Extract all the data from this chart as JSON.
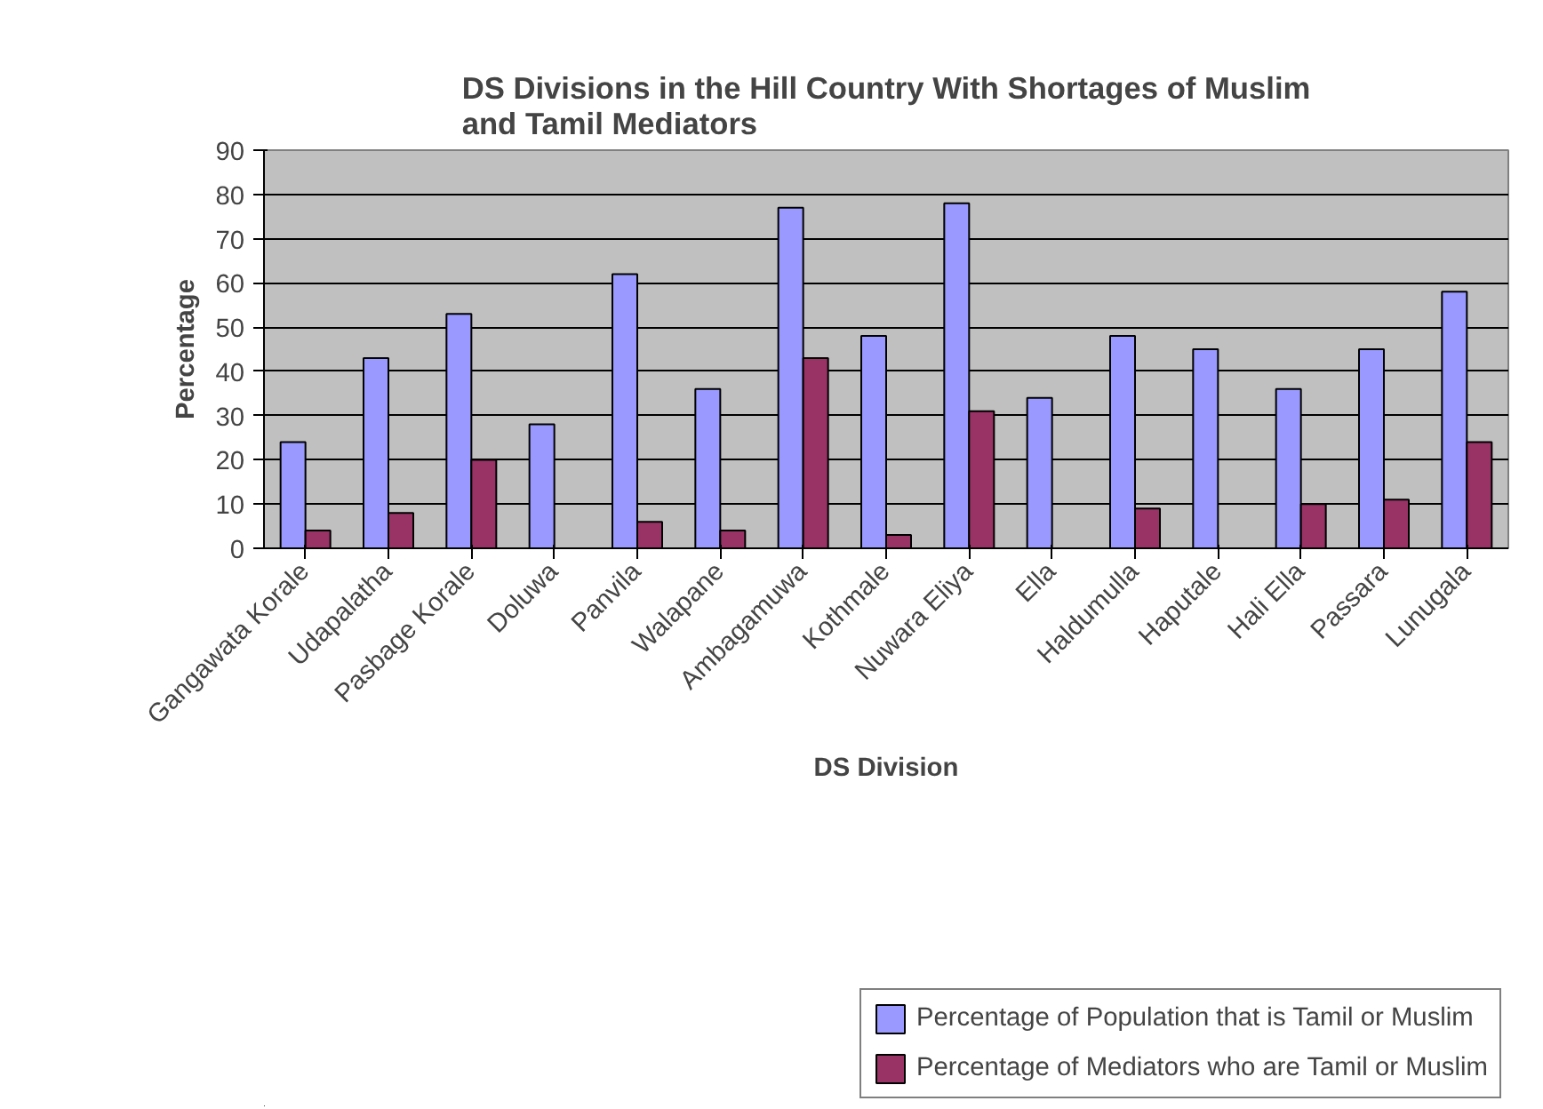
{
  "chart_data": {
    "type": "bar",
    "title": "DS Divisions in the Hill Country With Shortages of Muslim and Tamil Mediators",
    "xlabel": "DS Division",
    "ylabel": "Percentage",
    "categories": [
      "Gangawata Korale",
      "Udapalatha",
      "Pasbage Korale",
      "Doluwa",
      "Panvila",
      "Walapane",
      "Ambagamuwa",
      "Kothmale",
      "Nuwara Eliya",
      "Ella",
      "Haldumulla",
      "Haputale",
      "Hali Ella",
      "Passara",
      "Lunugala"
    ],
    "series": [
      {
        "name": "Percentage of Population that is Tamil or Muslim",
        "color": "#9999ff",
        "values": [
          24,
          43,
          53,
          28,
          62,
          36,
          77,
          48,
          78,
          34,
          48,
          45,
          36,
          45,
          58
        ]
      },
      {
        "name": "Percentage of Mediators who are Tamil or Muslim",
        "color": "#993366",
        "values": [
          4,
          8,
          20,
          0,
          6,
          4,
          43,
          3,
          31,
          0,
          9,
          0,
          10,
          11,
          24
        ]
      }
    ],
    "ylim": [
      0,
      90
    ],
    "yticks": [
      0,
      10,
      20,
      30,
      40,
      50,
      60,
      70,
      80,
      90
    ],
    "grid": "y",
    "legend": "bottom right"
  }
}
